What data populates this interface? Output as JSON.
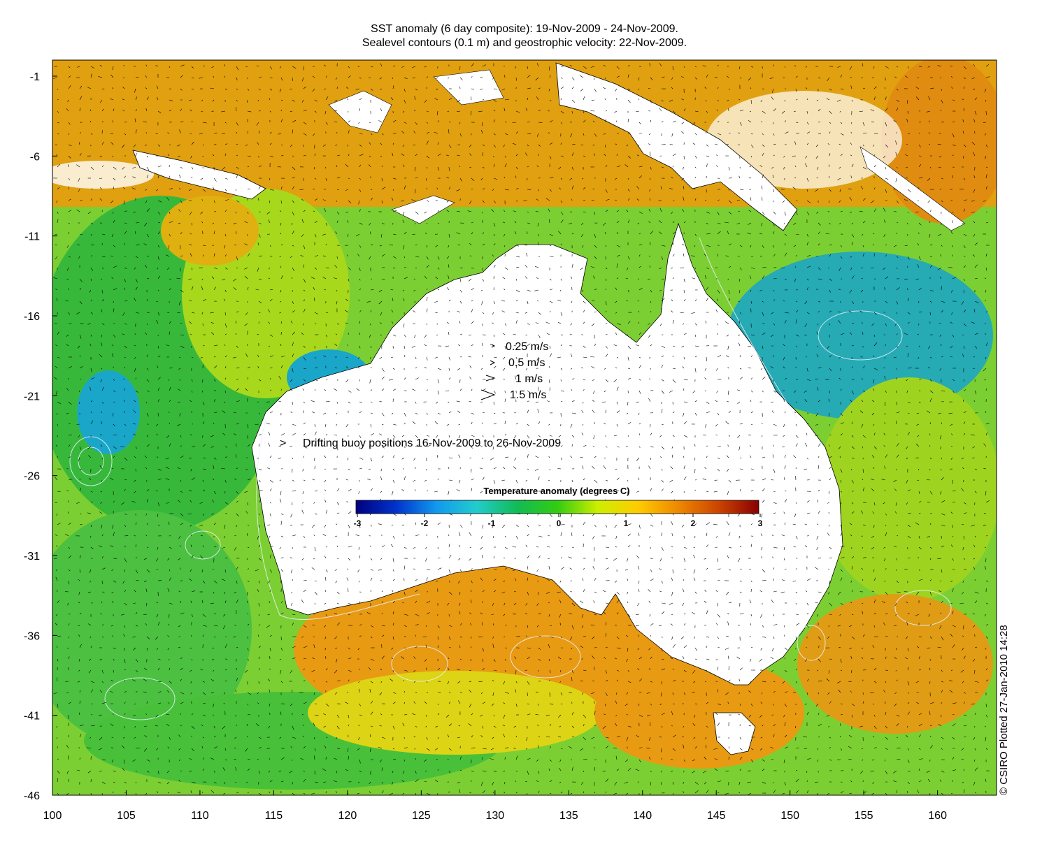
{
  "title": {
    "line1": "SST anomaly (6 day composite): 19-Nov-2009 - 24-Nov-2009.",
    "line2": "Sealevel contours (0.1 m) and geostrophic velocity: 22-Nov-2009."
  },
  "axes": {
    "x_ticks": [
      "100",
      "105",
      "110",
      "115",
      "120",
      "125",
      "130",
      "135",
      "140",
      "145",
      "150",
      "155",
      "160"
    ],
    "y_ticks": [
      "-1",
      "-6",
      "-11",
      "-16",
      "-21",
      "-26",
      "-31",
      "-36",
      "-41",
      "-46"
    ]
  },
  "velocity_legend": [
    {
      "label": "0.25 m/s"
    },
    {
      "label": "0.5 m/s"
    },
    {
      "label": "1 m/s"
    },
    {
      "label": "1.5 m/s"
    }
  ],
  "buoy_legend": {
    "marker": ">",
    "label": "Drifting buoy positions 16-Nov-2009 to 26-Nov-2009",
    "color": "#cc33cc"
  },
  "colorbar": {
    "title": "Temperature anomaly (degrees C)",
    "ticks": [
      "-3",
      "-2",
      "-1",
      "0",
      "1",
      "2",
      "3"
    ],
    "colors": [
      "#00007f",
      "#0033cc",
      "#1199ee",
      "#22cccc",
      "#11bb55",
      "#33cc11",
      "#ccee00",
      "#ffcc00",
      "#ee8800",
      "#cc4400",
      "#880000"
    ]
  },
  "copyright": "© CSIRO Plotted 27-Jan-2010 14:28",
  "palette": {
    "ocean_green": "#44c02c",
    "ocean_yellow": "#d8e010",
    "ocean_orange": "#e88a10",
    "ocean_red": "#c24a08",
    "ocean_blue": "#1aa6c8",
    "land": "#ffffff"
  }
}
